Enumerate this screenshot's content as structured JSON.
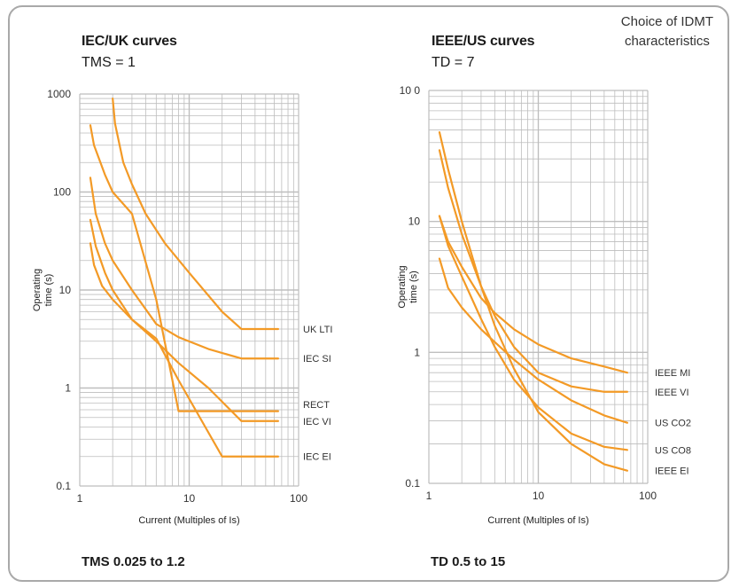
{
  "tag": {
    "line1": "Choice of IDMT",
    "line2": "characteristics"
  },
  "colors": {
    "curve": "#f39a26",
    "grid": "#bdbdbd",
    "frame": "#a9a9a9"
  },
  "chart_data": [
    {
      "type": "line",
      "title": "IEC/UK curves",
      "subtitle": "TMS =  1",
      "xlabel": "Current (Multiples of Is)",
      "ylabel": "Operating time (s)",
      "xscale": "log",
      "yscale": "log",
      "xlim": [
        1,
        100
      ],
      "ylim": [
        0.1,
        1000
      ],
      "xticks": [
        "1",
        "10",
        "100"
      ],
      "yticks": [
        "0.1",
        "1",
        "10",
        "100",
        "1000"
      ],
      "grid": true,
      "footer": "TMS 0.025 to 1.2",
      "series": [
        {
          "name": "UK LTI",
          "x": [
            2,
            2.1,
            2.5,
            3,
            4,
            6,
            10,
            20,
            30,
            65
          ],
          "y": [
            900,
            500,
            200,
            120,
            60,
            30,
            15,
            6,
            4,
            4
          ]
        },
        {
          "name": "IEC SI",
          "x": [
            1.25,
            1.4,
            1.7,
            2,
            3,
            5,
            8,
            15,
            30,
            65
          ],
          "y": [
            140,
            60,
            30,
            20,
            10,
            4.5,
            3.3,
            2.5,
            2,
            2
          ]
        },
        {
          "name": "RECT",
          "x": [
            1.25,
            1.35,
            1.7,
            2,
            3,
            5,
            8,
            30,
            65
          ],
          "y": [
            480,
            300,
            150,
            100,
            60,
            8,
            0.58,
            0.58,
            0.58
          ]
        },
        {
          "name": "IEC VI",
          "x": [
            1.25,
            1.4,
            1.7,
            2,
            3,
            5,
            8,
            15,
            30,
            65
          ],
          "y": [
            52,
            28,
            15,
            10,
            5,
            3,
            1.8,
            1,
            0.46,
            0.46
          ]
        },
        {
          "name": "IEC EI",
          "x": [
            1.25,
            1.35,
            1.6,
            2,
            3,
            5,
            8,
            20,
            65
          ],
          "y": [
            30,
            18,
            11,
            8,
            5,
            3.2,
            1.2,
            0.2,
            0.2
          ]
        }
      ]
    },
    {
      "type": "line",
      "title": "IEEE/US curves",
      "subtitle": "TD = 7",
      "xlabel": "Current (Multiples of Is)",
      "ylabel": "Operating time (s)",
      "xscale": "log",
      "yscale": "log",
      "xlim": [
        1,
        100
      ],
      "ylim": [
        0.1,
        100
      ],
      "xticks": [
        "1",
        "10",
        "100"
      ],
      "yticks": [
        "0.1",
        "1",
        "10",
        "10 0"
      ],
      "grid": true,
      "footer": "TD 0.5 to 15",
      "series": [
        {
          "name": "IEEE MI",
          "x": [
            1.25,
            1.5,
            2,
            3,
            4,
            6,
            10,
            20,
            40,
            65
          ],
          "y": [
            11,
            7,
            4.5,
            2.6,
            2,
            1.5,
            1.15,
            0.9,
            0.78,
            0.7
          ]
        },
        {
          "name": "IEEE VI",
          "x": [
            1.25,
            1.5,
            2,
            3,
            4,
            6,
            10,
            20,
            40,
            65
          ],
          "y": [
            35,
            18,
            8,
            3.2,
            1.9,
            1.1,
            0.7,
            0.55,
            0.5,
            0.5
          ]
        },
        {
          "name": "US CO2",
          "x": [
            1.25,
            1.5,
            2,
            3,
            4,
            6,
            10,
            20,
            40,
            65
          ],
          "y": [
            5.2,
            3.1,
            2.2,
            1.5,
            1.2,
            0.88,
            0.62,
            0.43,
            0.33,
            0.29
          ]
        },
        {
          "name": "US CO8",
          "x": [
            1.25,
            1.5,
            2,
            3,
            4,
            6,
            10,
            20,
            40,
            65
          ],
          "y": [
            11,
            6.5,
            3.8,
            1.8,
            1.1,
            0.62,
            0.38,
            0.24,
            0.19,
            0.18
          ]
        },
        {
          "name": "IEEE EI",
          "x": [
            1.25,
            1.5,
            2,
            3,
            4,
            6,
            10,
            20,
            40,
            65
          ],
          "y": [
            48,
            25,
            10,
            3.2,
            1.6,
            0.75,
            0.35,
            0.2,
            0.14,
            0.125
          ]
        }
      ]
    }
  ]
}
